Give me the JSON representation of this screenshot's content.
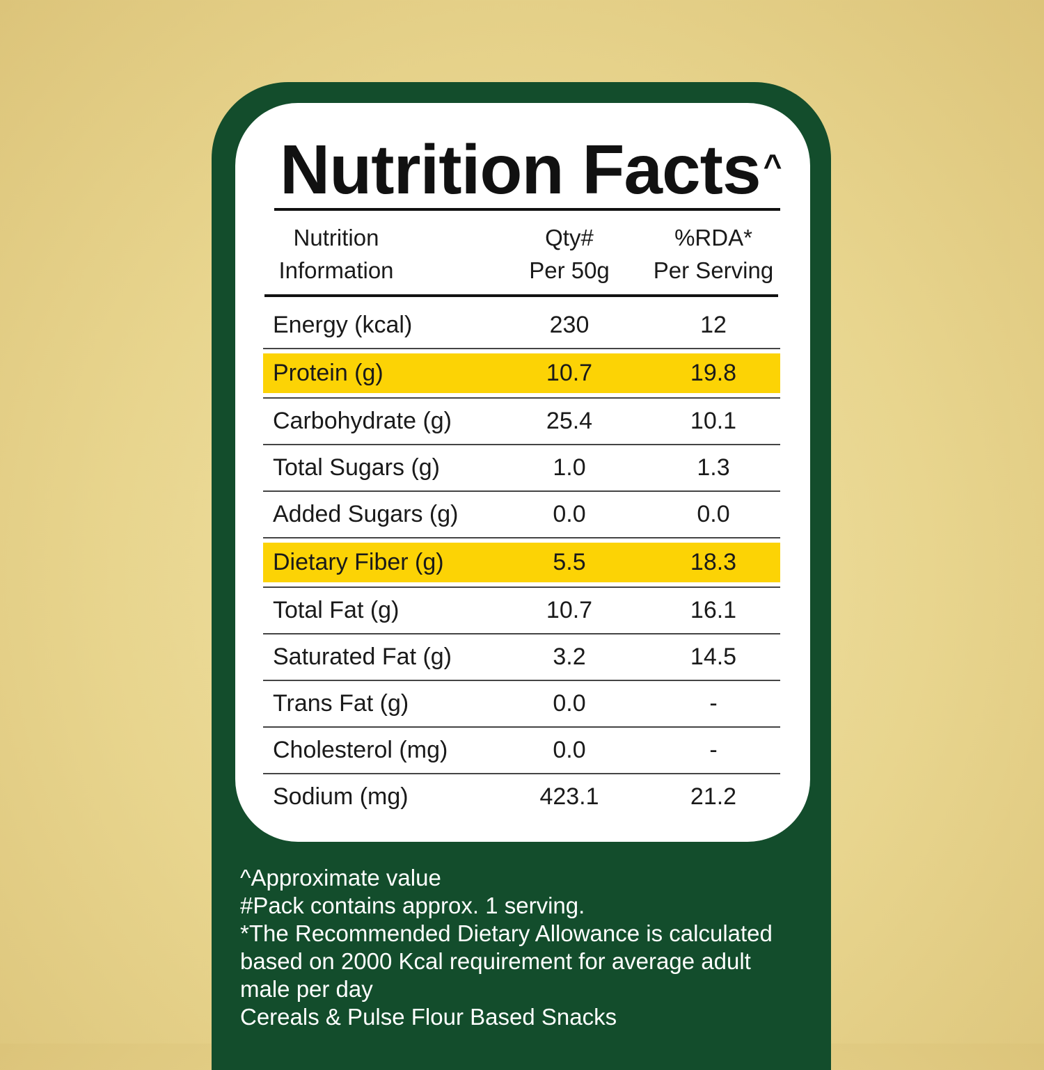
{
  "title": "Nutrition Facts",
  "title_mark": "^",
  "headers": {
    "col1": [
      "Nutrition",
      "Information"
    ],
    "col2": [
      "Qty#",
      "Per 50g"
    ],
    "col3": [
      "%RDA*",
      "Per Serving"
    ]
  },
  "rows": [
    {
      "name": "Energy (kcal)",
      "qty": "230",
      "rda": "12",
      "highlight": false
    },
    {
      "name": "Protein (g)",
      "qty": "10.7",
      "rda": "19.8",
      "highlight": true
    },
    {
      "name": "Carbohydrate (g)",
      "qty": "25.4",
      "rda": "10.1",
      "highlight": false
    },
    {
      "name": "Total Sugars (g)",
      "qty": "1.0",
      "rda": "1.3",
      "highlight": false
    },
    {
      "name": "Added Sugars (g)",
      "qty": "0.0",
      "rda": "0.0",
      "highlight": false
    },
    {
      "name": "Dietary Fiber (g)",
      "qty": "5.5",
      "rda": "18.3",
      "highlight": true
    },
    {
      "name": "Total Fat (g)",
      "qty": "10.7",
      "rda": "16.1",
      "highlight": false
    },
    {
      "name": "Saturated Fat (g)",
      "qty": "3.2",
      "rda": "14.5",
      "highlight": false
    },
    {
      "name": "Trans Fat (g)",
      "qty": "0.0",
      "rda": "-",
      "highlight": false
    },
    {
      "name": "Cholesterol (mg)",
      "qty": "0.0",
      "rda": "-",
      "highlight": false
    },
    {
      "name": "Sodium (mg)",
      "qty": "423.1",
      "rda": "21.2",
      "highlight": false
    }
  ],
  "footnotes": [
    "^Approximate value",
    "#Pack contains approx. 1 serving.",
    "*The Recommended Dietary Allowance is calculated",
    "based on 2000 Kcal requirement for average adult",
    "male per day",
    "Cereals & Pulse Flour Based Snacks"
  ],
  "colors": {
    "panel_green": "#134d2c",
    "highlight_yellow": "#fcd305",
    "background_gold": "#e8d58e"
  }
}
